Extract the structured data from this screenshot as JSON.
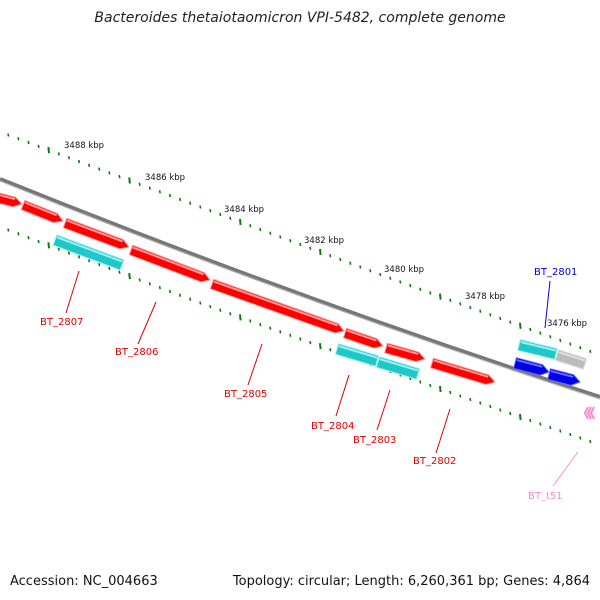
{
  "title": "Bacteroides thetaiotaomicron VPI-5482, complete genome",
  "footer": {
    "accession": "Accession: NC_004663",
    "topology": "Topology: circular; Length: 6,260,361 bp; Genes: 4,864"
  },
  "colors": {
    "cds": "#ff0000",
    "cds_light": "#ff9a9a",
    "gene_cyan": "#1ec8c8",
    "gene_blue": "#0000e6",
    "gray_gene": "#bbbbbb",
    "trna": "#ff88cc",
    "ticks": "#0b7a0b",
    "backbone": "#808080"
  },
  "scale_labels": [
    "3488 kbp",
    "3486 kbp",
    "3484 kbp",
    "3482 kbp",
    "3480 kbp",
    "3478 kbp",
    "3476 kbp"
  ],
  "gene_labels": {
    "BT_2807": "BT_2807",
    "BT_2806": "BT_2806",
    "BT_2805": "BT_2805",
    "BT_2804": "BT_2804",
    "BT_2803": "BT_2803",
    "BT_2802": "BT_2802",
    "BT_2801": "BT_2801",
    "BT_t51": "BT_t51"
  }
}
